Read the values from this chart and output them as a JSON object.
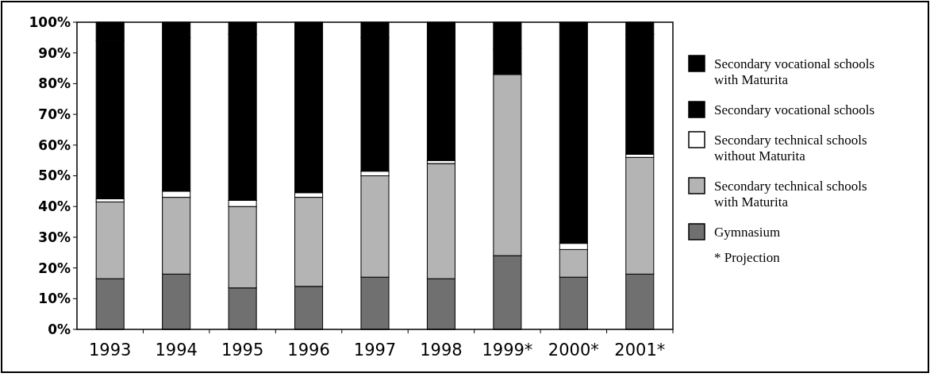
{
  "chart_data": {
    "type": "bar",
    "stacked": true,
    "categories": [
      "1993",
      "1994",
      "1995",
      "1996",
      "1997",
      "1998",
      "1999*",
      "2000*",
      "2001*"
    ],
    "series": [
      {
        "name": "Gymnasium",
        "color": "#707070",
        "values": [
          16.5,
          18,
          13.5,
          14,
          17,
          16.5,
          24,
          17,
          18
        ]
      },
      {
        "name": "Secondary technical schools with Maturita",
        "color": "#b4b4b4",
        "values": [
          25,
          25,
          26.5,
          29,
          33,
          37.5,
          59,
          9,
          38
        ]
      },
      {
        "name": "Secondary technical schools without Maturita",
        "color": "#ffffff",
        "values": [
          1,
          2,
          2,
          1.5,
          1.5,
          1,
          null,
          2,
          1
        ]
      },
      {
        "name": "Secondary vocational schools",
        "color": "#000000",
        "values": [
          51.5,
          50,
          54,
          50.5,
          43.5,
          40,
          8.5,
          72,
          39
        ]
      },
      {
        "name": "Secondary vocational schools with Maturita",
        "color": "#000000",
        "values": [
          6,
          5,
          4,
          5,
          5,
          5,
          8.5,
          0,
          4
        ]
      }
    ],
    "ylim": [
      0,
      100
    ],
    "yticks": [
      {
        "value": 0,
        "label": "0%"
      },
      {
        "value": 10,
        "label": "10%"
      },
      {
        "value": 20,
        "label": "20%"
      },
      {
        "value": 30,
        "label": "30%"
      },
      {
        "value": 40,
        "label": "40%"
      },
      {
        "value": 50,
        "label": "50%"
      },
      {
        "value": 60,
        "label": "60%"
      },
      {
        "value": 70,
        "label": "70%"
      },
      {
        "value": 80,
        "label": "80%"
      },
      {
        "value": 90,
        "label": "90%"
      },
      {
        "value": 100,
        "label": "100%"
      }
    ],
    "legend": "right",
    "grid": false,
    "annotations": [
      "* Projection"
    ]
  }
}
